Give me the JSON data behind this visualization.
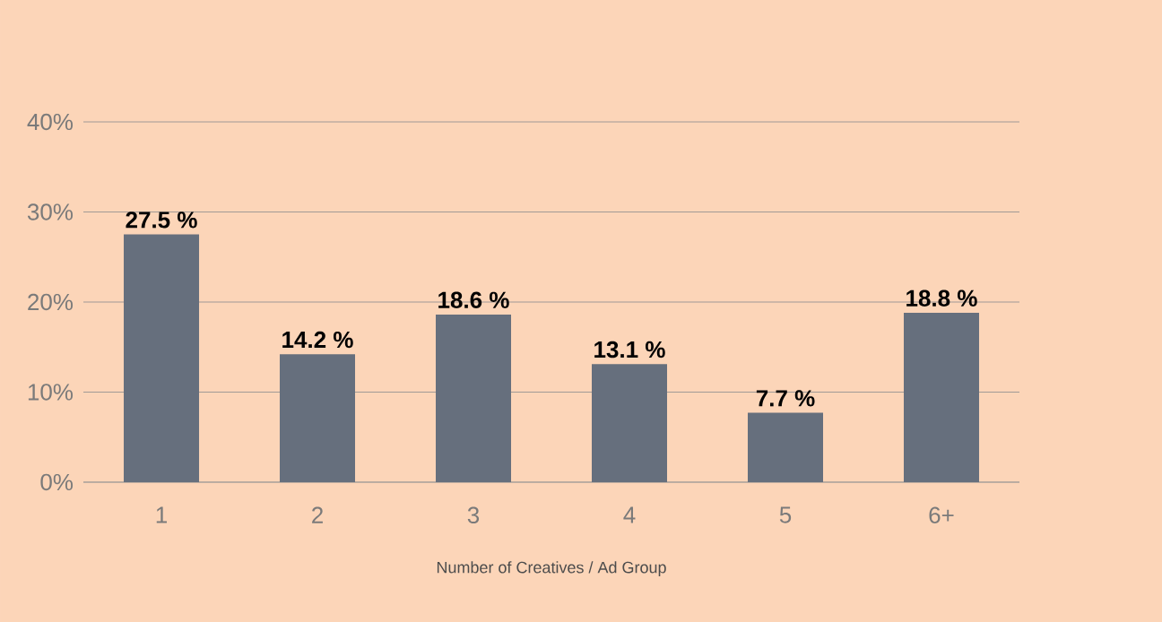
{
  "chart_data": {
    "type": "bar",
    "xlabel": "Number of Creatives / Ad Group",
    "categories": [
      "1",
      "2",
      "3",
      "4",
      "5",
      "6+"
    ],
    "values": [
      27.5,
      14.2,
      18.6,
      13.1,
      7.7,
      18.8
    ],
    "value_labels": [
      "27.5 %",
      "14.2 %",
      "18.6 %",
      "13.1 %",
      "7.7 %",
      "18.8 %"
    ],
    "color": "#666f7d",
    "ylim": [
      0,
      40
    ],
    "yticks": [
      {
        "value": 0,
        "label": "0%"
      },
      {
        "value": 10,
        "label": "10%"
      },
      {
        "value": 20,
        "label": "20%"
      },
      {
        "value": 30,
        "label": "30%"
      },
      {
        "value": 40,
        "label": "40%"
      }
    ],
    "grid": "y"
  }
}
